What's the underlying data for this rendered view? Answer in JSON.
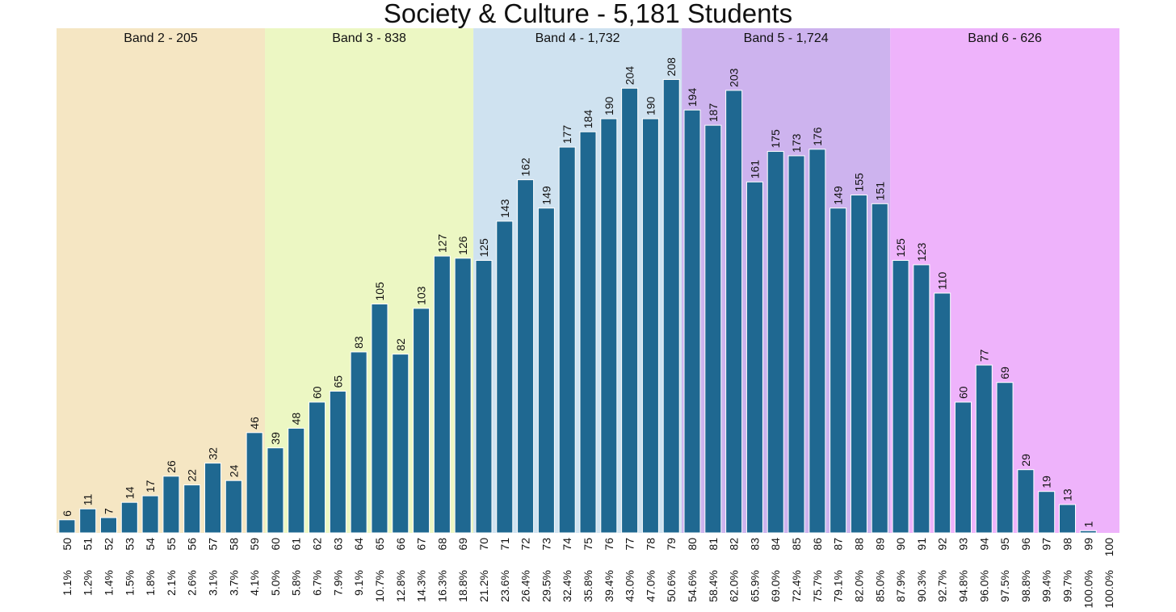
{
  "chart_data": {
    "type": "bar",
    "title": "Society & Culture - 5,181 Students",
    "xlabel": "",
    "ylabel": "",
    "ylim": [
      0,
      230
    ],
    "grid": false,
    "bar_color": "#1f6891",
    "categories": [
      "50",
      "51",
      "52",
      "53",
      "54",
      "55",
      "56",
      "57",
      "58",
      "59",
      "60",
      "61",
      "62",
      "63",
      "64",
      "65",
      "66",
      "67",
      "68",
      "69",
      "70",
      "71",
      "72",
      "73",
      "74",
      "75",
      "76",
      "77",
      "78",
      "79",
      "80",
      "81",
      "82",
      "83",
      "84",
      "85",
      "86",
      "87",
      "88",
      "89",
      "90",
      "91",
      "92",
      "93",
      "94",
      "95",
      "96",
      "97",
      "98",
      "99",
      "100"
    ],
    "values": [
      6,
      11,
      7,
      14,
      17,
      26,
      22,
      32,
      24,
      46,
      39,
      48,
      60,
      65,
      83,
      105,
      82,
      103,
      127,
      126,
      125,
      143,
      162,
      149,
      177,
      184,
      190,
      204,
      190,
      208,
      194,
      187,
      203,
      161,
      175,
      173,
      176,
      149,
      155,
      151,
      125,
      123,
      110,
      60,
      77,
      69,
      29,
      19,
      13,
      1,
      0
    ],
    "value_labels": [
      "6",
      "11",
      "7",
      "14",
      "17",
      "26",
      "22",
      "32",
      "24",
      "46",
      "39",
      "48",
      "60",
      "65",
      "83",
      "105",
      "82",
      "103",
      "127",
      "126",
      "125",
      "143",
      "162",
      "149",
      "177",
      "184",
      "190",
      "204",
      "190",
      "208",
      "194",
      "187",
      "203",
      "161",
      "175",
      "173",
      "176",
      "149",
      "155",
      "151",
      "125",
      "123",
      "110",
      "60",
      "77",
      "69",
      "29",
      "19",
      "13",
      "1",
      ""
    ],
    "percentiles": [
      "1.1%",
      "1.2%",
      "1.4%",
      "1.5%",
      "1.8%",
      "2.1%",
      "2.6%",
      "3.1%",
      "3.7%",
      "4.1%",
      "5.0%",
      "5.8%",
      "6.7%",
      "7.9%",
      "9.1%",
      "10.7%",
      "12.8%",
      "14.3%",
      "16.3%",
      "18.8%",
      "21.2%",
      "23.6%",
      "26.4%",
      "29.5%",
      "32.4%",
      "35.8%",
      "39.4%",
      "43.0%",
      "47.0%",
      "50.6%",
      "54.6%",
      "58.4%",
      "62.0%",
      "65.9%",
      "69.0%",
      "72.4%",
      "75.7%",
      "79.1%",
      "82.0%",
      "85.0%",
      "87.9%",
      "90.3%",
      "92.7%",
      "94.8%",
      "96.0%",
      "97.5%",
      "98.8%",
      "99.4%",
      "99.7%",
      "100.0%",
      "100.0%"
    ],
    "bands": [
      {
        "label": "Band 2 - 205",
        "from": 50,
        "to": 59,
        "color": "#f5e6c3"
      },
      {
        "label": "Band 3 - 838",
        "from": 60,
        "to": 69,
        "color": "#ecf7c3"
      },
      {
        "label": "Band 4 - 1,732",
        "from": 70,
        "to": 79,
        "color": "#cfe2f0"
      },
      {
        "label": "Band 5 - 1,724",
        "from": 80,
        "to": 89,
        "color": "#cdb3ee"
      },
      {
        "label": "Band 6 - 626",
        "from": 90,
        "to": 100,
        "color": "#eeb3fb"
      }
    ]
  }
}
